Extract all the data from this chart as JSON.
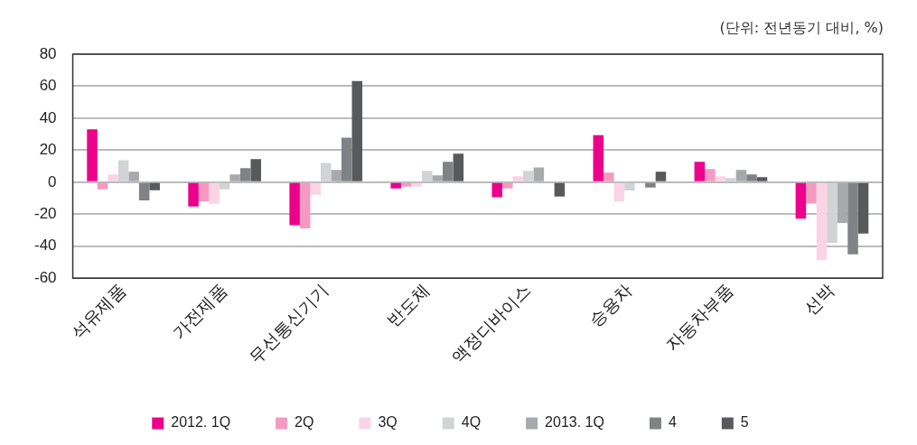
{
  "chart_data": {
    "type": "bar",
    "annotations": [
      "(단위: 전년동기 대비, %)"
    ],
    "categories": [
      "석유제품",
      "가전제품",
      "무선통신기기",
      "반도체",
      "액정디바이스",
      "승용차",
      "자동차부품",
      "선박"
    ],
    "series": [
      {
        "name": "2012. 1Q",
        "color": "#ec008c",
        "values": [
          33,
          -15.2,
          -26.8,
          -3.9,
          -9.4,
          29.4,
          12.7,
          -22.8
        ]
      },
      {
        "name": "2Q",
        "color": "#f49ac1",
        "values": [
          -4.4,
          -11.9,
          -28.9,
          -2.8,
          -3.9,
          6,
          8.2,
          -13.3
        ]
      },
      {
        "name": "3Q",
        "color": "#fad4e4",
        "values": [
          4.9,
          -13.5,
          -7.8,
          -2.8,
          3.7,
          -11.9,
          3.7,
          -48.7
        ]
      },
      {
        "name": "4Q",
        "color": "#d1d3d4",
        "values": [
          13.8,
          -4.4,
          12.1,
          7.1,
          7.1,
          -5.2,
          2.6,
          -37.9
        ]
      },
      {
        "name": "2013. 1Q",
        "color": "#a7a9ac",
        "values": [
          6.5,
          4.9,
          7.7,
          4.3,
          9.3,
          0,
          7.7,
          -25.4
        ]
      },
      {
        "name": "4",
        "color": "#808285",
        "values": [
          -11.3,
          8.8,
          27.9,
          12.7,
          0,
          -3.3,
          4.9,
          -45
        ]
      },
      {
        "name": "5",
        "color": "#58595b",
        "values": [
          -5,
          14.4,
          63.2,
          17.8,
          -9,
          6.5,
          3.2,
          -32.1
        ]
      }
    ],
    "ylim": [
      -60,
      80
    ],
    "yticks": [
      -60,
      -40,
      -20,
      0,
      20,
      40,
      60,
      80
    ],
    "grid": "y",
    "legend": "bottom"
  }
}
